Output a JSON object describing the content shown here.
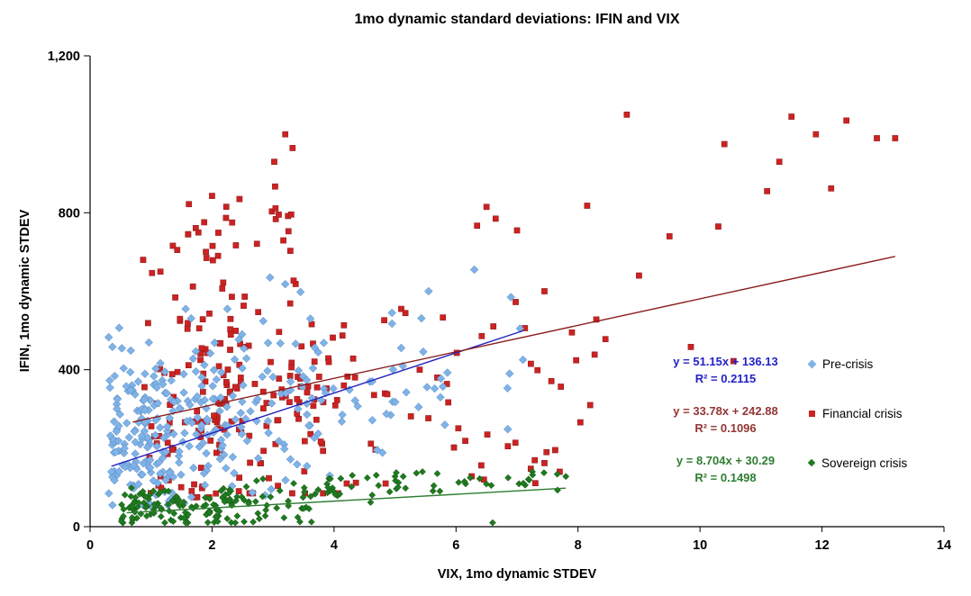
{
  "chart_data": {
    "type": "scatter",
    "title": "1mo dynamic standard deviations: IFIN and VIX",
    "xlabel": "VIX, 1mo dynamic STDEV",
    "ylabel": "IFIN, 1mo dynamic STDEV",
    "xlim": [
      0,
      14
    ],
    "ylim": [
      0,
      1200
    ],
    "grid": false,
    "legend_position": "right-inside",
    "x_ticks": [
      {
        "v": 0,
        "label": "0"
      },
      {
        "v": 2,
        "label": "2"
      },
      {
        "v": 4,
        "label": "4"
      },
      {
        "v": 6,
        "label": "6"
      },
      {
        "v": 8,
        "label": "8"
      },
      {
        "v": 10,
        "label": "10"
      },
      {
        "v": 12,
        "label": "12"
      },
      {
        "v": 14,
        "label": "14"
      }
    ],
    "y_ticks": [
      {
        "v": 0,
        "label": "0"
      },
      {
        "v": 400,
        "label": "400"
      },
      {
        "v": 800,
        "label": "800"
      },
      {
        "v": 1200,
        "label": "1,200"
      }
    ],
    "draw_order": [
      1,
      0,
      2
    ],
    "series": [
      {
        "name": "Pre-crisis",
        "marker": "diamond",
        "marker_size": 4.4,
        "color": "#7FB3E8",
        "stroke": "#4F81BD",
        "seed": 11,
        "equation": "y = 51.15x + 136.13",
        "r2": "R² = 0.2115",
        "label_color": "#2222C8",
        "trendline": {
          "slope": 51.15,
          "intercept": 136.13,
          "x_range": [
            0.35,
            7.1
          ],
          "color": "#2323BE"
        },
        "clusters": [
          {
            "n": 150,
            "x": [
              0.3,
              1.35
            ],
            "y_mean": 225,
            "y_sd": 105,
            "y_clip": [
              55,
              540
            ]
          },
          {
            "n": 90,
            "x": [
              1.35,
              2.55
            ],
            "y_mean": 280,
            "y_sd": 110,
            "y_clip": [
              60,
              555
            ]
          },
          {
            "n": 48,
            "x": [
              2.55,
              3.8
            ],
            "y_mean": 300,
            "y_sd": 100,
            "y_clip": [
              80,
              530
            ]
          },
          {
            "n": 24,
            "x": [
              3.8,
              5.2
            ],
            "y_mean": 330,
            "y_sd": 110,
            "y_clip": [
              130,
              560
            ]
          },
          {
            "n": 14,
            "x": [
              5.2,
              7.1
            ],
            "y_mean": 420,
            "y_sd": 110,
            "y_clip": [
              200,
              640
            ]
          }
        ],
        "points": [
          [
            6.3,
            655
          ],
          [
            5.55,
            600
          ],
          [
            6.9,
            585
          ],
          [
            7.05,
            505
          ],
          [
            4.95,
            545
          ],
          [
            3.2,
            618
          ],
          [
            3.45,
            598
          ],
          [
            2.95,
            635
          ],
          [
            0.35,
            140
          ],
          [
            0.4,
            118
          ]
        ]
      },
      {
        "name": "Financial crisis",
        "marker": "square",
        "marker_size": 3.1,
        "color": "#CC2222",
        "stroke": "#8B1A1A",
        "seed": 7,
        "equation": "y = 33.78x + 242.88",
        "r2": "R² = 0.1096",
        "label_color": "#943634",
        "trendline": {
          "slope": 33.78,
          "intercept": 242.88,
          "x_range": [
            0.7,
            13.2
          ],
          "color": "#8B1E1E"
        },
        "clusters": [
          {
            "n": 115,
            "x": [
              0.85,
              2.6
            ],
            "y_mean": 330,
            "y_sd": 150,
            "y_clip": [
              75,
              720
            ]
          },
          {
            "n": 70,
            "x": [
              2.6,
              4.2
            ],
            "y_mean": 330,
            "y_sd": 160,
            "y_clip": [
              85,
              750
            ]
          },
          {
            "n": 28,
            "x": [
              1.2,
              3.4
            ],
            "y_mean": 735,
            "y_sd": 65,
            "y_clip": [
              620,
              875
            ]
          },
          {
            "n": 22,
            "x": [
              4.2,
              6.1
            ],
            "y_mean": 350,
            "y_sd": 150,
            "y_clip": [
              110,
              700
            ]
          },
          {
            "n": 16,
            "x": [
              6.1,
              8.3
            ],
            "y_mean": 400,
            "y_sd": 170,
            "y_clip": [
              120,
              800
            ]
          },
          {
            "n": 10,
            "x": [
              4.6,
              7.9
            ],
            "y_mean": 185,
            "y_sd": 55,
            "y_clip": [
              100,
              300
            ]
          }
        ],
        "points": [
          [
            3.2,
            1000
          ],
          [
            3.32,
            965
          ],
          [
            3.02,
            930
          ],
          [
            2.45,
            835
          ],
          [
            2.0,
            843
          ],
          [
            1.62,
            822
          ],
          [
            8.8,
            1050
          ],
          [
            11.5,
            1045
          ],
          [
            12.4,
            1035
          ],
          [
            12.9,
            990
          ],
          [
            13.2,
            990
          ],
          [
            11.3,
            930
          ],
          [
            11.9,
            1000
          ],
          [
            10.4,
            975
          ],
          [
            9.5,
            740
          ],
          [
            10.3,
            765
          ],
          [
            11.1,
            855
          ],
          [
            12.15,
            862
          ],
          [
            6.5,
            815
          ],
          [
            6.65,
            785
          ],
          [
            7.0,
            755
          ],
          [
            8.15,
            818
          ],
          [
            9.0,
            640
          ],
          [
            9.85,
            458
          ],
          [
            10.55,
            422
          ],
          [
            8.45,
            478
          ],
          [
            8.3,
            528
          ],
          [
            7.45,
            600
          ],
          [
            7.9,
            495
          ],
          [
            6.85,
            205
          ],
          [
            7.45,
            162
          ],
          [
            7.7,
            140
          ]
        ]
      },
      {
        "name": "Sovereign crisis",
        "marker": "diamond",
        "marker_size": 3.6,
        "color": "#1F7A1F",
        "stroke": "#145214",
        "seed": 23,
        "equation": "y = 8.704x + 30.29",
        "r2": "R² = 0.1498",
        "label_color": "#2E7D32",
        "trendline": {
          "slope": 8.704,
          "intercept": 30.29,
          "x_range": [
            0.6,
            7.8
          ],
          "color": "#2E7D32"
        },
        "clusters": [
          {
            "n": 118,
            "x": [
              0.5,
              2.5
            ],
            "y_mean": 50,
            "y_sd": 28,
            "y_clip": [
              10,
              128
            ]
          },
          {
            "n": 42,
            "x": [
              2.5,
              4.0
            ],
            "y_mean": 60,
            "y_sd": 30,
            "y_clip": [
              12,
              135
            ]
          },
          {
            "n": 30,
            "x": [
              4.0,
              6.5
            ],
            "y_mean": 105,
            "y_sd": 18,
            "y_clip": [
              60,
              140
            ]
          },
          {
            "n": 12,
            "x": [
              6.5,
              7.85
            ],
            "y_mean": 118,
            "y_sd": 14,
            "y_clip": [
              80,
              140
            ]
          }
        ],
        "points": [
          [
            6.6,
            10
          ],
          [
            7.8,
            128
          ],
          [
            5.0,
            128
          ],
          [
            4.6,
            62
          ],
          [
            3.9,
            100
          ]
        ]
      }
    ]
  }
}
